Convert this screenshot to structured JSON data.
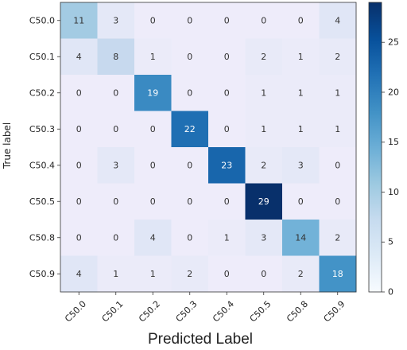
{
  "chart_data": {
    "type": "heatmap",
    "xlabel": "Predicted Label",
    "ylabel": "True label",
    "x_categories": [
      "C50.0",
      "C50.1",
      "C50.2",
      "C50.3",
      "C50.4",
      "C50.5",
      "C50.8",
      "C50.9"
    ],
    "y_categories": [
      "C50.0",
      "C50.1",
      "C50.2",
      "C50.3",
      "C50.4",
      "C50.5",
      "C50.8",
      "C50.9"
    ],
    "values": [
      [
        11,
        3,
        0,
        0,
        0,
        0,
        0,
        4
      ],
      [
        4,
        8,
        1,
        0,
        0,
        2,
        1,
        2
      ],
      [
        0,
        0,
        19,
        0,
        0,
        1,
        1,
        1
      ],
      [
        0,
        0,
        0,
        22,
        0,
        1,
        1,
        1
      ],
      [
        0,
        3,
        0,
        0,
        23,
        2,
        3,
        0
      ],
      [
        0,
        0,
        0,
        0,
        0,
        29,
        0,
        0
      ],
      [
        0,
        0,
        4,
        0,
        1,
        3,
        14,
        2
      ],
      [
        4,
        1,
        1,
        2,
        0,
        0,
        2,
        18
      ]
    ],
    "colorbar": {
      "min": 0,
      "max": 29,
      "ticks": [
        0,
        5,
        10,
        15,
        20,
        25
      ],
      "colormap": "Blues"
    },
    "background_tint": "#e6e0f5"
  }
}
